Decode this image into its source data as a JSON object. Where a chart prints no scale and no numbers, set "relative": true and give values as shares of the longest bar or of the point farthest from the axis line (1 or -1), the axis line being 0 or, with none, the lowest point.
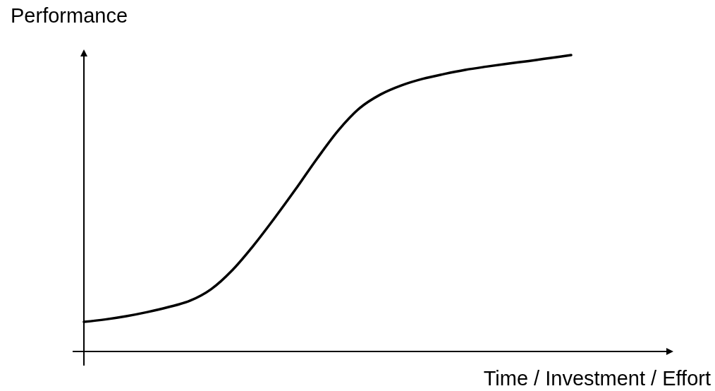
{
  "chart_data": {
    "type": "line",
    "relative": true,
    "xlabel": "Time / Investment / Effort",
    "ylabel": "Performance",
    "categories": [
      null,
      null,
      null,
      null,
      null,
      null,
      null,
      null,
      null,
      null,
      null,
      null,
      null,
      null,
      null,
      null,
      null,
      null,
      null,
      null,
      null,
      null,
      null,
      null
    ],
    "series": [
      {
        "color": "#000000",
        "values": [
          0.1,
          0.108,
          0.119,
          0.133,
          0.15,
          0.171,
          0.21,
          0.274,
          0.357,
          0.45,
          0.548,
          0.65,
          0.745,
          0.82,
          0.867,
          0.898,
          0.92,
          0.936,
          0.95,
          0.961,
          0.971,
          0.98,
          0.99,
          1
        ]
      }
    ]
  }
}
